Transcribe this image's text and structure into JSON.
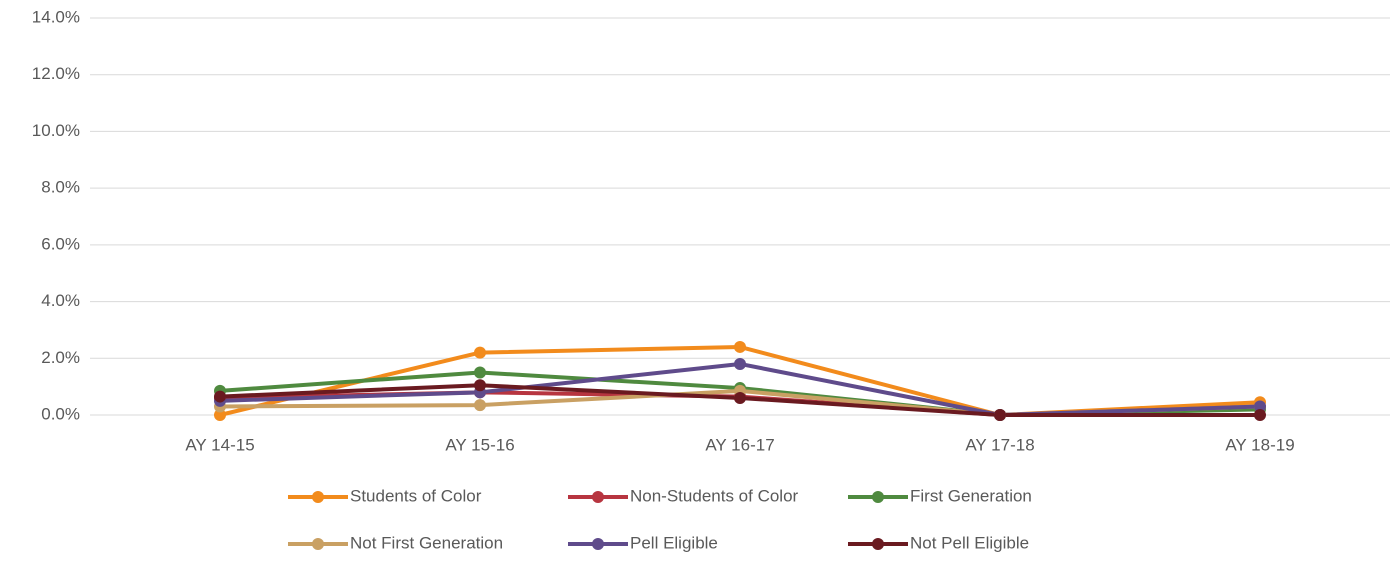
{
  "chart_data": {
    "type": "line",
    "categories": [
      "AY 14-15",
      "AY 15-16",
      "AY 16-17",
      "AY 17-18",
      "AY 18-19"
    ],
    "series": [
      {
        "name": "Students of Color",
        "color": "#f28b1c",
        "values": [
          0,
          2.2,
          2.4,
          0,
          0.45
        ]
      },
      {
        "name": "Non-Students of Color",
        "color": "#b73540",
        "values": [
          0.6,
          0.8,
          0.65,
          0,
          0.3
        ]
      },
      {
        "name": "First Generation",
        "color": "#4f8a3f",
        "values": [
          0.85,
          1.5,
          0.95,
          0,
          0.2
        ]
      },
      {
        "name": "Not First Generation",
        "color": "#c9a063",
        "values": [
          0.3,
          0.35,
          0.85,
          0,
          0.3
        ]
      },
      {
        "name": "Pell Eligible",
        "color": "#5f4b8b",
        "values": [
          0.5,
          0.8,
          1.8,
          0,
          0.3
        ]
      },
      {
        "name": "Not Pell Eligible",
        "color": "#6a1a20",
        "values": [
          0.65,
          1.05,
          0.6,
          0,
          0
        ]
      }
    ],
    "ylim": [
      0,
      14
    ],
    "yticks": [
      {
        "value": 0,
        "label": "0.0%"
      },
      {
        "value": 2,
        "label": "2.0%"
      },
      {
        "value": 4,
        "label": "4.0%"
      },
      {
        "value": 6,
        "label": "6.0%"
      },
      {
        "value": 8,
        "label": "8.0%"
      },
      {
        "value": 10,
        "label": "10.0%"
      },
      {
        "value": 12,
        "label": "12.0%"
      },
      {
        "value": 14,
        "label": "14.0%"
      }
    ],
    "grid": true,
    "legend": "bottom"
  }
}
